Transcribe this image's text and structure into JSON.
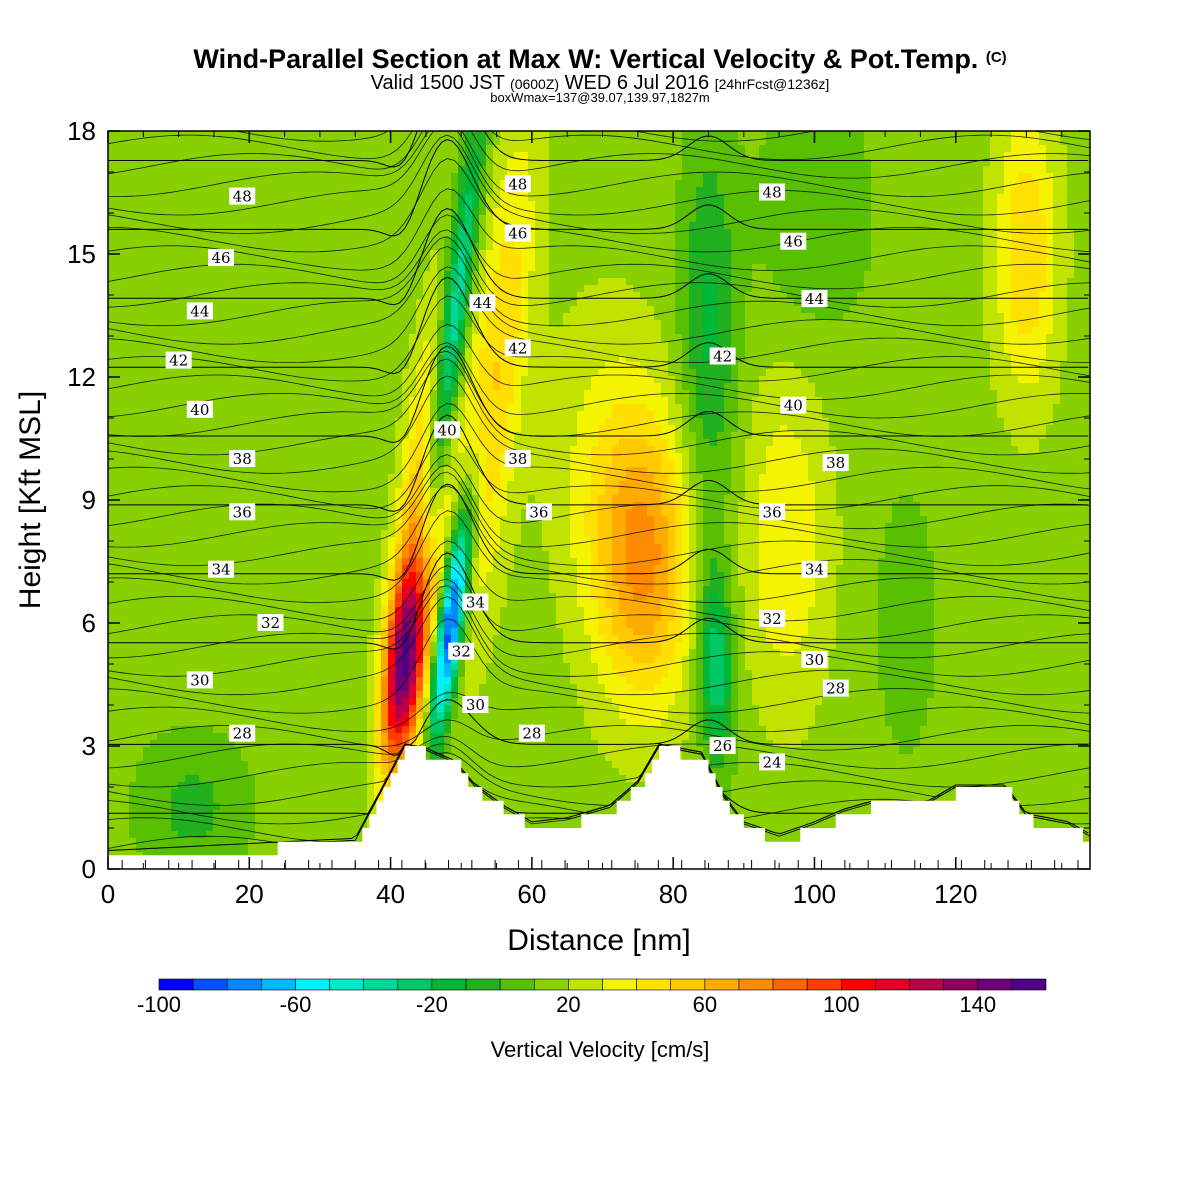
{
  "titles": {
    "main": "Wind-Parallel Section at Max W: Vertical Velocity & Pot.Temp.",
    "copyright": "(C)",
    "valid_prefix": "Valid 1500 JST",
    "valid_zulu": "(0600Z)",
    "valid_mid": "WED 6 Jul 2016",
    "valid_fcst": "[24hrFcst@1236z]",
    "box_wmax": "boxWmax=137@39.07,139.97,1827m"
  },
  "chart_data": {
    "type": "heatmap",
    "xlabel": "Distance [nm]",
    "ylabel": "Height [Kft MSL]",
    "xlim": [
      0,
      139
    ],
    "ylim": [
      0,
      18
    ],
    "xticks": [
      0,
      20,
      40,
      60,
      80,
      100,
      120
    ],
    "yticks": [
      0,
      3,
      6,
      9,
      12,
      15,
      18
    ],
    "grid": false,
    "colorbar": {
      "label": "Vertical Velocity [cm/s]",
      "range": [
        -100,
        160
      ],
      "step": 10,
      "ticks": [
        -100,
        -60,
        -20,
        20,
        60,
        100,
        140
      ],
      "colors": [
        "#0000ff",
        "#0050ff",
        "#0088ff",
        "#00b8ff",
        "#00f0ff",
        "#00e8c8",
        "#00d89a",
        "#00c866",
        "#00b838",
        "#20b020",
        "#58c000",
        "#88d000",
        "#c0e400",
        "#f4f400",
        "#ffe000",
        "#ffc800",
        "#ffaa00",
        "#ff8c00",
        "#ff6400",
        "#ff3c00",
        "#ff0000",
        "#e00028",
        "#b8004a",
        "#900060",
        "#700078",
        "#500088"
      ]
    },
    "vertical_velocity_features": [
      {
        "kind": "updraft",
        "x_nm": 42,
        "peak_height_kft": 5,
        "max_cm_s": 137
      },
      {
        "kind": "downdraft",
        "x_nm": 48,
        "peak_height_kft": 6,
        "min_cm_s": -100
      },
      {
        "kind": "updraft",
        "x_nm": 76,
        "peak_height_kft": 7.5,
        "max_cm_s": 70
      },
      {
        "kind": "downdraft",
        "x_nm": 85,
        "peak_height_kft": 5,
        "min_cm_s": -35
      },
      {
        "kind": "updraft",
        "x_nm": 130,
        "peak_height_kft": 15,
        "max_cm_s": 50
      }
    ],
    "terrain_kft": {
      "x": [
        0,
        35,
        39,
        42,
        45,
        49,
        52,
        56,
        60,
        65,
        71,
        75,
        78,
        84,
        87,
        90,
        95,
        100,
        104,
        108,
        116,
        120,
        127,
        130,
        136,
        139
      ],
      "h": [
        0.3,
        0.6,
        1.9,
        2.9,
        2.8,
        2.5,
        1.9,
        1.4,
        1.0,
        1.1,
        1.4,
        2.0,
        2.9,
        2.7,
        1.7,
        1.0,
        0.7,
        1.0,
        1.3,
        1.5,
        1.5,
        1.9,
        1.9,
        1.2,
        1.0,
        0.7
      ]
    },
    "isentropes": [
      {
        "theta": 24,
        "label_x_nm": 94,
        "label_h_kft": 2.6
      },
      {
        "theta": 26,
        "label_x_nm": 87,
        "label_h_kft": 3.0
      },
      {
        "theta": 28,
        "label_x_nm": 19,
        "label_h_kft": 3.3
      },
      {
        "theta": 28,
        "label_x_nm": 60,
        "label_h_kft": 3.3
      },
      {
        "theta": 28,
        "label_x_nm": 103,
        "label_h_kft": 4.4
      },
      {
        "theta": 30,
        "label_x_nm": 13,
        "label_h_kft": 4.6
      },
      {
        "theta": 30,
        "label_x_nm": 52,
        "label_h_kft": 4.0
      },
      {
        "theta": 30,
        "label_x_nm": 100,
        "label_h_kft": 5.1
      },
      {
        "theta": 32,
        "label_x_nm": 23,
        "label_h_kft": 6.0
      },
      {
        "theta": 32,
        "label_x_nm": 50,
        "label_h_kft": 5.3
      },
      {
        "theta": 32,
        "label_x_nm": 94,
        "label_h_kft": 6.1
      },
      {
        "theta": 34,
        "label_x_nm": 16,
        "label_h_kft": 7.3
      },
      {
        "theta": 34,
        "label_x_nm": 52,
        "label_h_kft": 6.5
      },
      {
        "theta": 34,
        "label_x_nm": 100,
        "label_h_kft": 7.3
      },
      {
        "theta": 36,
        "label_x_nm": 19,
        "label_h_kft": 8.7
      },
      {
        "theta": 36,
        "label_x_nm": 61,
        "label_h_kft": 8.7
      },
      {
        "theta": 36,
        "label_x_nm": 94,
        "label_h_kft": 8.7
      },
      {
        "theta": 38,
        "label_x_nm": 19,
        "label_h_kft": 10.0
      },
      {
        "theta": 38,
        "label_x_nm": 58,
        "label_h_kft": 10.0
      },
      {
        "theta": 38,
        "label_x_nm": 103,
        "label_h_kft": 9.9
      },
      {
        "theta": 40,
        "label_x_nm": 13,
        "label_h_kft": 11.2
      },
      {
        "theta": 40,
        "label_x_nm": 48,
        "label_h_kft": 10.7
      },
      {
        "theta": 40,
        "label_x_nm": 97,
        "label_h_kft": 11.3
      },
      {
        "theta": 42,
        "label_x_nm": 10,
        "label_h_kft": 12.4
      },
      {
        "theta": 42,
        "label_x_nm": 58,
        "label_h_kft": 12.7
      },
      {
        "theta": 42,
        "label_x_nm": 87,
        "label_h_kft": 12.5
      },
      {
        "theta": 44,
        "label_x_nm": 13,
        "label_h_kft": 13.6
      },
      {
        "theta": 44,
        "label_x_nm": 53,
        "label_h_kft": 13.8
      },
      {
        "theta": 44,
        "label_x_nm": 100,
        "label_h_kft": 13.9
      },
      {
        "theta": 46,
        "label_x_nm": 16,
        "label_h_kft": 14.9
      },
      {
        "theta": 46,
        "label_x_nm": 58,
        "label_h_kft": 15.5
      },
      {
        "theta": 46,
        "label_x_nm": 97,
        "label_h_kft": 15.3
      },
      {
        "theta": 48,
        "label_x_nm": 19,
        "label_h_kft": 16.4
      },
      {
        "theta": 48,
        "label_x_nm": 58,
        "label_h_kft": 16.7
      },
      {
        "theta": 48,
        "label_x_nm": 94,
        "label_h_kft": 16.5
      }
    ]
  }
}
